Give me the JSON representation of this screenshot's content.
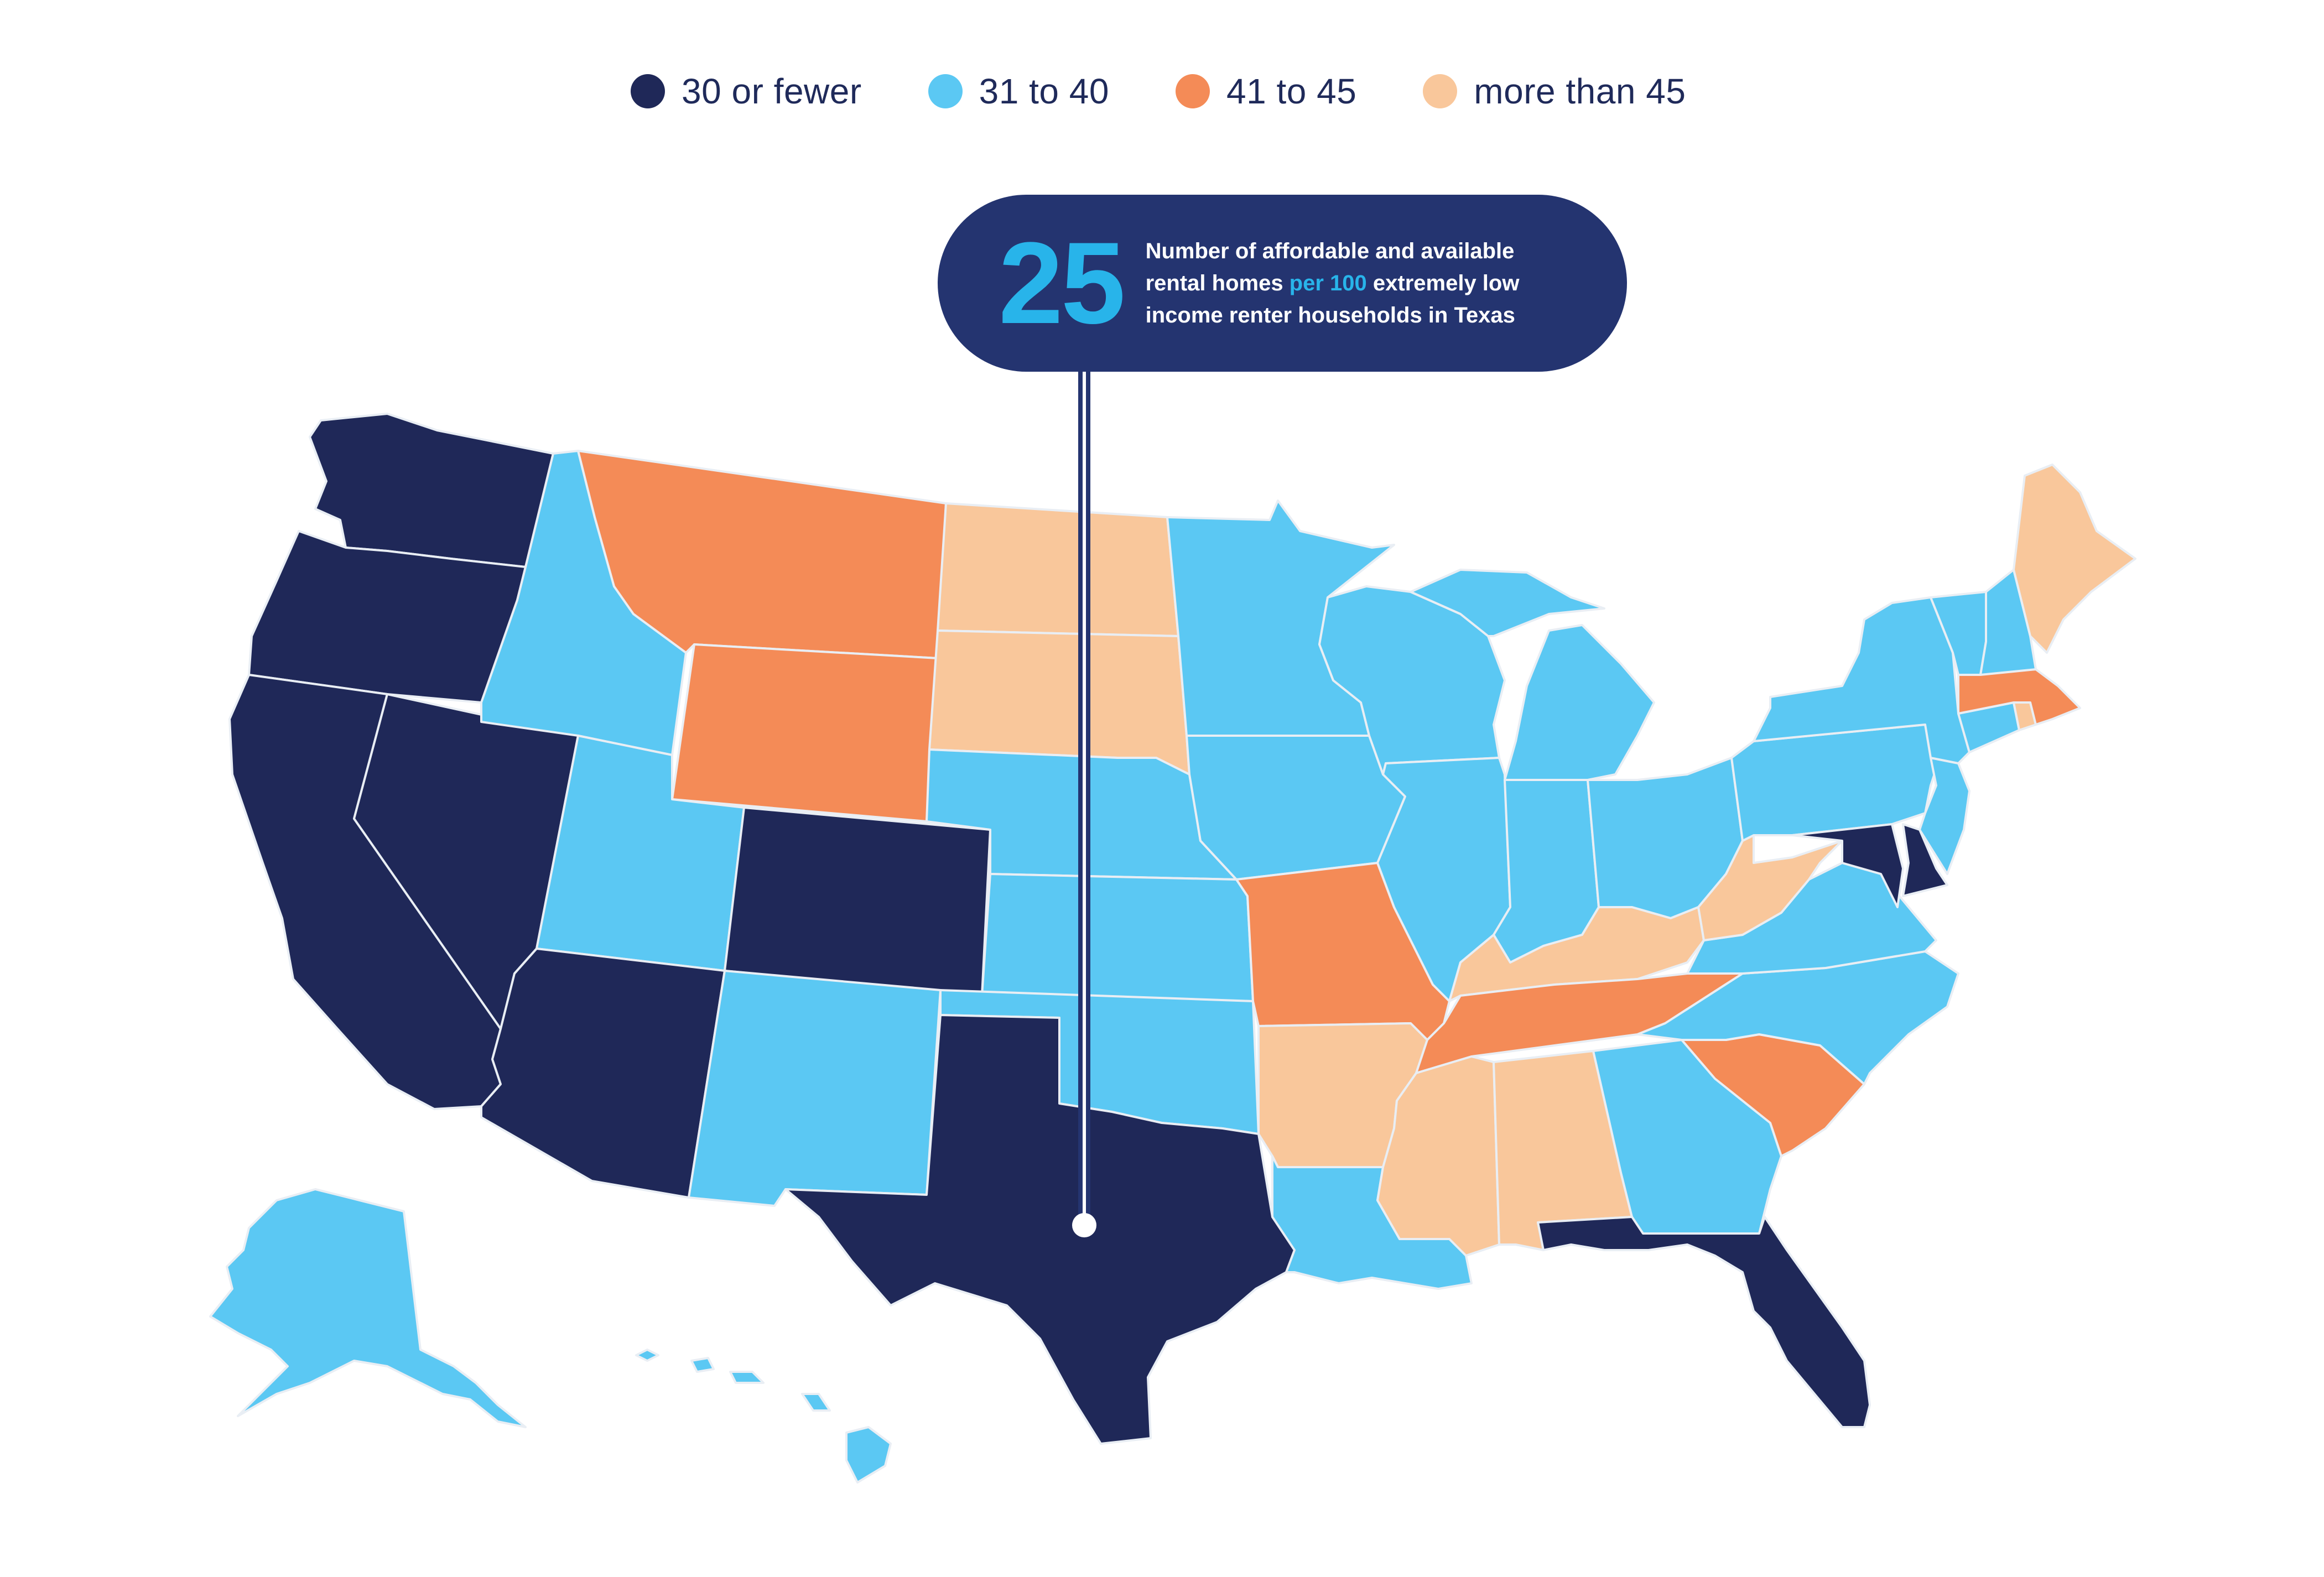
{
  "legend": {
    "items": [
      {
        "label": "30 or fewer",
        "color": "#1f2858"
      },
      {
        "label": "31 to 40",
        "color": "#5bc8f3"
      },
      {
        "label": "41 to 45",
        "color": "#f48b57"
      },
      {
        "label": "more than 45",
        "color": "#f9c79b"
      }
    ]
  },
  "callout": {
    "number": "25",
    "text_before": "Number of affordable and available rental homes ",
    "text_highlight": "per 100",
    "text_after": " extremely low income renter households in Texas",
    "state": "Texas"
  },
  "states": {
    "WA": "30 or fewer",
    "OR": "30 or fewer",
    "CA": "30 or fewer",
    "NV": "30 or fewer",
    "AZ": "30 or fewer",
    "CO": "30 or fewer",
    "TX": "30 or fewer",
    "FL": "30 or fewer",
    "MD": "30 or fewer",
    "DE": "30 or fewer",
    "ID": "31 to 40",
    "UT": "31 to 40",
    "NM": "31 to 40",
    "NE": "31 to 40",
    "KS": "31 to 40",
    "OK": "31 to 40",
    "MN": "31 to 40",
    "IA": "31 to 40",
    "WI": "31 to 40",
    "IL": "31 to 40",
    "MI": "31 to 40",
    "IN": "31 to 40",
    "OH": "31 to 40",
    "PA": "31 to 40",
    "NY": "31 to 40",
    "VT": "31 to 40",
    "NH": "31 to 40",
    "CT": "31 to 40",
    "NJ": "31 to 40",
    "VA": "31 to 40",
    "NC": "31 to 40",
    "GA": "31 to 40",
    "LA": "31 to 40",
    "AK": "31 to 40",
    "HI": "31 to 40",
    "MT": "41 to 45",
    "WY": "41 to 45",
    "MO": "41 to 45",
    "TN": "41 to 45",
    "SC": "41 to 45",
    "MA": "41 to 45",
    "ND": "more than 45",
    "SD": "more than 45",
    "AR": "more than 45",
    "MS": "more than 45",
    "AL": "more than 45",
    "KY": "more than 45",
    "WV": "more than 45",
    "ME": "more than 45",
    "RI": "more than 45"
  }
}
